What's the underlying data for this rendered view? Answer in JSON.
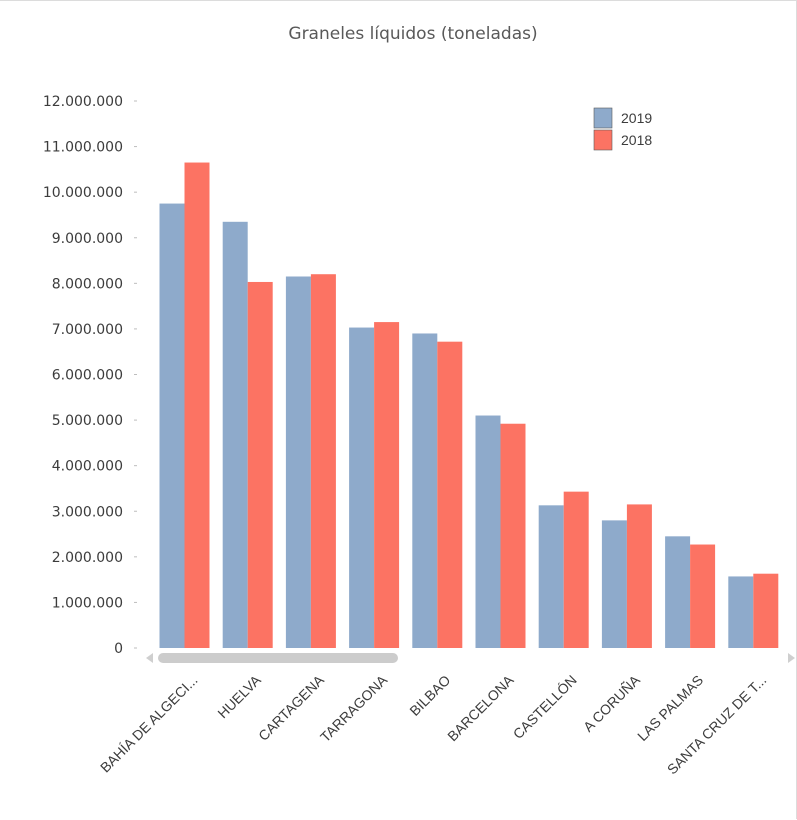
{
  "chart_data": {
    "type": "bar",
    "title": "Graneles líquidos (toneladas)",
    "xlabel": "",
    "ylabel": "",
    "ylim": [
      0,
      12000000
    ],
    "y_ticks": [
      0,
      1000000,
      2000000,
      3000000,
      4000000,
      5000000,
      6000000,
      7000000,
      8000000,
      9000000,
      10000000,
      11000000,
      12000000
    ],
    "y_tick_labels": [
      "0",
      "1.000.000",
      "2.000.000",
      "3.000.000",
      "4.000.000",
      "5.000.000",
      "6.000.000",
      "7.000.000",
      "8.000.000",
      "9.000.000",
      "10.000.000",
      "11.000.000",
      "12.000.000"
    ],
    "categories": [
      "BAHÍA DE ALGECI...",
      "HUELVA",
      "CARTAGENA",
      "TARRAGONA",
      "BILBAO",
      "BARCELONA",
      "CASTELLÓN",
      "A CORUÑA",
      "LAS PALMAS",
      "SANTA CRUZ DE T..."
    ],
    "series": [
      {
        "name": "2019",
        "color": "#8eaacb",
        "values": [
          9750000,
          9350000,
          8150000,
          7030000,
          6900000,
          5100000,
          3130000,
          2800000,
          2450000,
          1570000
        ]
      },
      {
        "name": "2018",
        "color": "#fc7363",
        "values": [
          10650000,
          8030000,
          8200000,
          7150000,
          6720000,
          4920000,
          3430000,
          3150000,
          2270000,
          1630000
        ]
      }
    ],
    "grid": false,
    "legend_position": "top-right",
    "x_scrollbar": true
  }
}
